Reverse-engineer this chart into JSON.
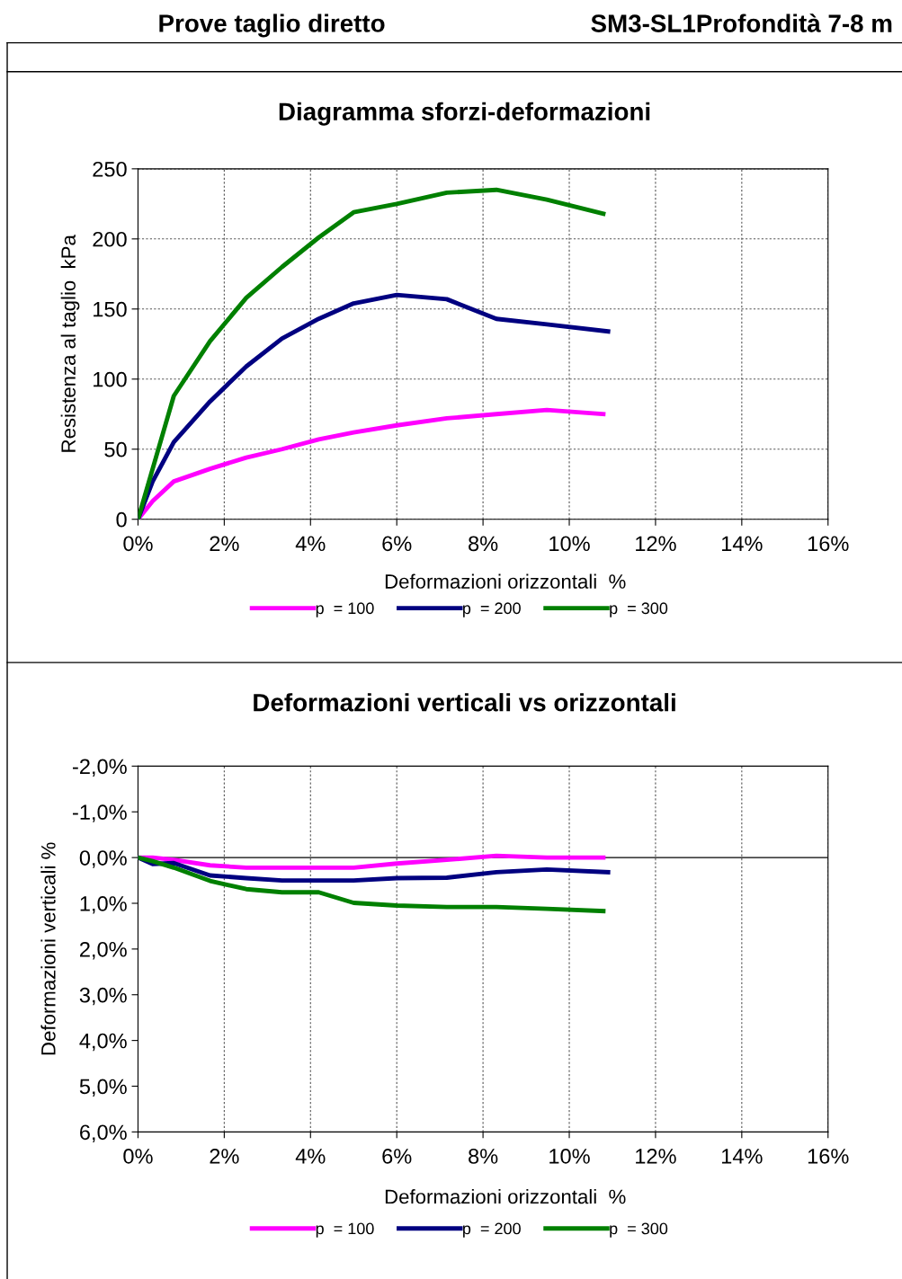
{
  "chart_data": [
    {
      "type": "line",
      "title": "Diagramma sforzi-deformazioni",
      "xlabel": "Deformazioni orizzontali  %",
      "ylabel": "Resistenza al taglio  kPa",
      "annotations": [
        "Prove taglio diretto",
        "SM3-SL1Profondità 7-8 m"
      ],
      "xlim": [
        0,
        16
      ],
      "xticks": [
        {
          "value": 0,
          "label": "0%"
        },
        {
          "value": 2,
          "label": "2%"
        },
        {
          "value": 4,
          "label": "4%"
        },
        {
          "value": 6,
          "label": "6%"
        },
        {
          "value": 8,
          "label": "8%"
        },
        {
          "value": 10,
          "label": "10%"
        },
        {
          "value": 12,
          "label": "12%"
        },
        {
          "value": 14,
          "label": "14%"
        },
        {
          "value": 16,
          "label": "16%"
        }
      ],
      "ylim": [
        0,
        250
      ],
      "yticks": [
        0,
        50,
        100,
        150,
        200,
        250
      ],
      "grid": true,
      "legend": "bottom",
      "marker": "none",
      "line_style": "solid",
      "series": [
        {
          "name": "p  = 100",
          "color": "#ff00ff",
          "x": [
            0,
            0.34,
            0.83,
            1.67,
            2.51,
            3.34,
            4.19,
            5.0,
            6.0,
            7.16,
            8.31,
            9.48,
            10.79
          ],
          "values": [
            0,
            13,
            27,
            36,
            44,
            50,
            57,
            62,
            67,
            72,
            75,
            78,
            75
          ]
        },
        {
          "name": "p  = 200",
          "color": "#000080",
          "x": [
            0,
            0.34,
            0.83,
            1.67,
            2.51,
            3.34,
            4.19,
            5.0,
            6.0,
            7.16,
            8.31,
            9.48,
            10.9
          ],
          "values": [
            0,
            27,
            55,
            84,
            109,
            129,
            143,
            154,
            160,
            157,
            143,
            139,
            134
          ]
        },
        {
          "name": "p  = 300",
          "color": "#008000",
          "x": [
            0,
            0.83,
            1.67,
            2.51,
            3.34,
            4.19,
            5.0,
            6.0,
            7.16,
            8.31,
            9.48,
            10.79
          ],
          "values": [
            0,
            88,
            127,
            158,
            180,
            201,
            219,
            225,
            233,
            235,
            228,
            218
          ]
        }
      ]
    },
    {
      "type": "line",
      "title": "Deformazioni verticali vs orizzontali",
      "xlabel": "Deformazioni orizzontali  %",
      "ylabel": "Deformazioni verticali %",
      "xlim": [
        0,
        16
      ],
      "xticks": [
        {
          "value": 0,
          "label": "0%"
        },
        {
          "value": 2,
          "label": "2%"
        },
        {
          "value": 4,
          "label": "4%"
        },
        {
          "value": 6,
          "label": "6%"
        },
        {
          "value": 8,
          "label": "8%"
        },
        {
          "value": 10,
          "label": "10%"
        },
        {
          "value": 12,
          "label": "12%"
        },
        {
          "value": 14,
          "label": "14%"
        },
        {
          "value": 16,
          "label": "16%"
        }
      ],
      "ylim": [
        6,
        -2
      ],
      "yticks": [
        {
          "value": -2,
          "label": "-2,0%"
        },
        {
          "value": -1,
          "label": "-1,0%"
        },
        {
          "value": 0,
          "label": "0,0%"
        },
        {
          "value": 1,
          "label": "1,0%"
        },
        {
          "value": 2,
          "label": "2,0%"
        },
        {
          "value": 3,
          "label": "3,0%"
        },
        {
          "value": 4,
          "label": "4,0%"
        },
        {
          "value": 5,
          "label": "5,0%"
        },
        {
          "value": 6,
          "label": "6,0%"
        }
      ],
      "grid": "x",
      "ref_lines": [
        {
          "axis": "y",
          "value": 0,
          "color": "#000000"
        }
      ],
      "legend": "bottom",
      "marker": "none",
      "line_style": "solid",
      "series": [
        {
          "name": "p  = 100",
          "color": "#ff00ff",
          "x": [
            0,
            0.34,
            0.83,
            1.67,
            2.51,
            3.34,
            4.19,
            5.0,
            6.0,
            7.16,
            8.31,
            9.48,
            10.79
          ],
          "values": [
            0,
            0,
            0.05,
            0.17,
            0.22,
            0.22,
            0.22,
            0.22,
            0.13,
            0.05,
            -0.04,
            0,
            0
          ]
        },
        {
          "name": "p  = 200",
          "color": "#000080",
          "x": [
            0,
            0.34,
            0.83,
            1.67,
            2.51,
            3.34,
            4.19,
            5.0,
            6.0,
            7.16,
            8.31,
            9.48,
            10.9
          ],
          "values": [
            0,
            0.14,
            0.12,
            0.39,
            0.45,
            0.5,
            0.5,
            0.5,
            0.45,
            0.44,
            0.32,
            0.26,
            0.32
          ]
        },
        {
          "name": "p  = 300",
          "color": "#008000",
          "x": [
            0,
            0.34,
            0.83,
            1.67,
            2.51,
            3.34,
            4.19,
            5.0,
            6.0,
            7.16,
            8.31,
            9.48,
            10.79
          ],
          "values": [
            0,
            0.08,
            0.22,
            0.51,
            0.69,
            0.76,
            0.76,
            0.99,
            1.05,
            1.08,
            1.08,
            1.12,
            1.17
          ]
        }
      ]
    }
  ]
}
